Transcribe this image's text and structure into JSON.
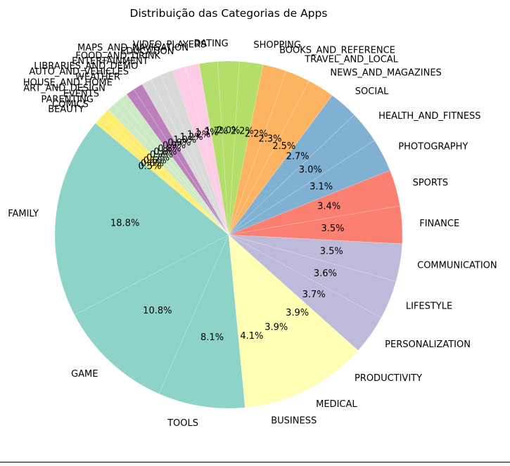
{
  "chart_data": {
    "type": "pie",
    "title": "Distribuição das Categorias de Apps",
    "start_angle_deg": 140,
    "direction": "counterclockwise",
    "slices": [
      {
        "label": "FAMILY",
        "value": 18.8,
        "pct_label": "18.8%",
        "color": "#8dd3c7"
      },
      {
        "label": "GAME",
        "value": 10.8,
        "pct_label": "10.8%",
        "color": "#8dd3c7"
      },
      {
        "label": "TOOLS",
        "value": 8.1,
        "pct_label": "8.1%",
        "color": "#8dd3c7"
      },
      {
        "label": "BUSINESS",
        "value": 4.1,
        "pct_label": "4.1%",
        "color": "#ffffb3"
      },
      {
        "label": "MEDICAL",
        "value": 3.9,
        "pct_label": "3.9%",
        "color": "#ffffb3"
      },
      {
        "label": "PRODUCTIVITY",
        "value": 3.9,
        "pct_label": "3.9%",
        "color": "#ffffb3"
      },
      {
        "label": "PERSONALIZATION",
        "value": 3.7,
        "pct_label": "3.7%",
        "color": "#bebada"
      },
      {
        "label": "LIFESTYLE",
        "value": 3.6,
        "pct_label": "3.6%",
        "color": "#bebada"
      },
      {
        "label": "COMMUNICATION",
        "value": 3.5,
        "pct_label": "3.5%",
        "color": "#bebada"
      },
      {
        "label": "FINANCE",
        "value": 3.5,
        "pct_label": "3.5%",
        "color": "#fb8072"
      },
      {
        "label": "SPORTS",
        "value": 3.4,
        "pct_label": "3.4%",
        "color": "#fb8072"
      },
      {
        "label": "PHOTOGRAPHY",
        "value": 3.1,
        "pct_label": "3.1%",
        "color": "#80b1d3"
      },
      {
        "label": "HEALTH_AND_FITNESS",
        "value": 3.0,
        "pct_label": "3.0%",
        "color": "#80b1d3"
      },
      {
        "label": "SOCIAL",
        "value": 2.7,
        "pct_label": "2.7%",
        "color": "#80b1d3"
      },
      {
        "label": "NEWS_AND_MAGAZINES",
        "value": 2.5,
        "pct_label": "2.5%",
        "color": "#fdb462"
      },
      {
        "label": "TRAVEL_AND_LOCAL",
        "value": 2.3,
        "pct_label": "2.3%",
        "color": "#fdb462"
      },
      {
        "label": "BOOKS_AND_REFERENCE",
        "value": 2.2,
        "pct_label": "2.2%",
        "color": "#fdb462"
      },
      {
        "label": "SHOPPING",
        "value": 2.2,
        "pct_label": "2.2%",
        "color": "#b3de69"
      },
      {
        "label": "DATING",
        "value": 2.0,
        "pct_label": "2.0%",
        "color": "#b3de69"
      },
      {
        "label": "VIDEO_PLAYERS",
        "value": 1.7,
        "pct_label": "1.7%",
        "color": "#b3de69"
      },
      {
        "label": "MAPS_AND_NAVIGATION",
        "value": 1.3,
        "pct_label": "1.3%",
        "color": "#fccde5"
      },
      {
        "label": "EDUCATION",
        "value": 1.2,
        "pct_label": "1.2%",
        "color": "#fccde5"
      },
      {
        "label": "FOOD_AND_DRINK",
        "value": 1.2,
        "pct_label": "1.2%",
        "color": "#d9d9d9"
      },
      {
        "label": "ENTERTAINMENT",
        "value": 1.0,
        "pct_label": "1.0%",
        "color": "#d9d9d9"
      },
      {
        "label": "LIBRARIES_AND_DEMO",
        "value": 0.9,
        "pct_label": "0.9%",
        "color": "#d9d9d9"
      },
      {
        "label": "AUTO_AND_VEHICLES",
        "value": 0.9,
        "pct_label": "0.9%",
        "color": "#bc80bd"
      },
      {
        "label": "WEATHER",
        "value": 0.8,
        "pct_label": "0.8%",
        "color": "#bc80bd"
      },
      {
        "label": "HOUSE_AND_HOME",
        "value": 0.8,
        "pct_label": "0.8%",
        "color": "#ccebc5"
      },
      {
        "label": "ART_AND_DESIGN",
        "value": 0.7,
        "pct_label": "0.7%",
        "color": "#ccebc5"
      },
      {
        "label": "EVENTS",
        "value": 0.7,
        "pct_label": "0.7%",
        "color": "#ccebc5"
      },
      {
        "label": "PARENTING",
        "value": 0.6,
        "pct_label": "0.6%",
        "color": "#ffed6f"
      },
      {
        "label": "COMICS",
        "value": 0.6,
        "pct_label": "0.6%",
        "color": "#ffed6f"
      },
      {
        "label": "BEAUTY",
        "value": 0.5,
        "pct_label": "0.5%",
        "color": "#ffed6f"
      }
    ]
  }
}
